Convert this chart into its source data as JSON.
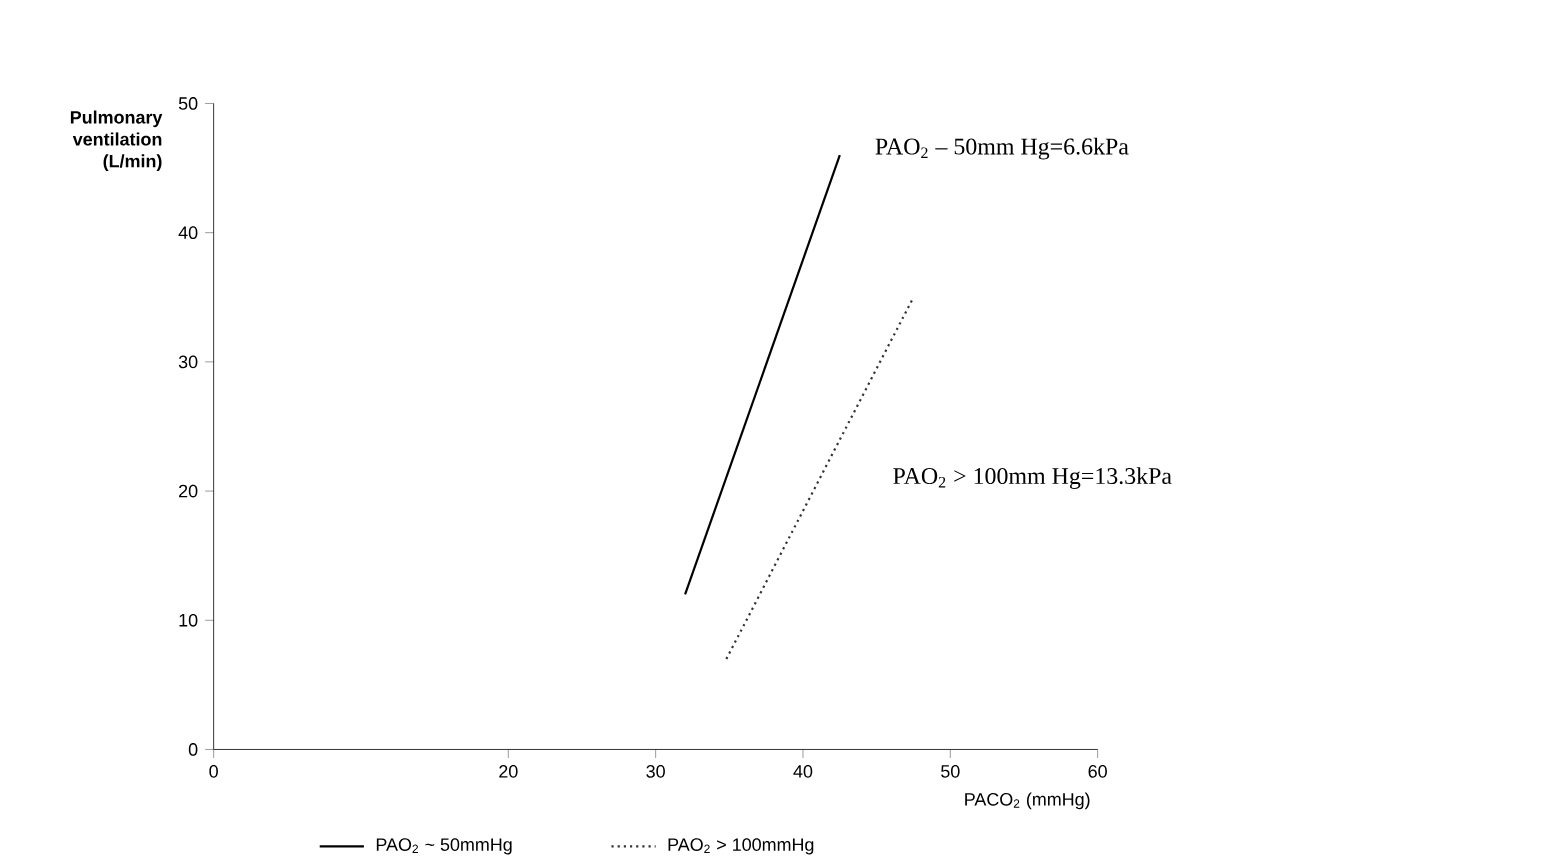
{
  "chart_data": {
    "type": "line",
    "xlabel": "PACO$_{2}$ (mmHg)",
    "ylabel": "Pulmonary ventilation (L/min)",
    "xlim": [
      0,
      60
    ],
    "xticks": [
      0,
      20,
      30,
      40,
      50,
      60
    ],
    "ylim": [
      0,
      50
    ],
    "yticks": [
      0,
      10,
      20,
      30,
      40,
      50
    ],
    "series": [
      {
        "name": "PAO$_{2}$ ~ 50mmHg",
        "color": "#000000",
        "line_style": "solid",
        "x": [
          32,
          42.5
        ],
        "values": [
          12,
          46
        ]
      },
      {
        "name": "PAO$_{2}$ > 100mmHg",
        "color": "#333333",
        "line_style": "dotted",
        "x": [
          34.8,
          47.5
        ],
        "values": [
          7,
          35
        ]
      }
    ],
    "annotations": [
      "PAO$_{2}$ – 50mm Hg=6.6kPa",
      "PAO$_{2}$ > 100mm Hg=13.3kPa"
    ],
    "legend": "bottom",
    "grid": false,
    "marker": "none"
  }
}
